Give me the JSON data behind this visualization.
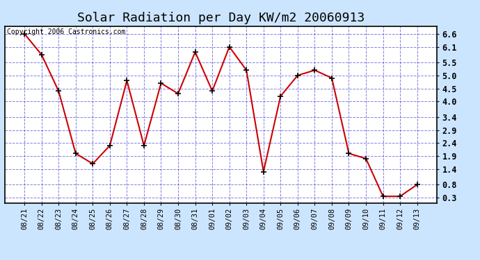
{
  "title": "Solar Radiation per Day KW/m2 20060913",
  "copyright": "Copyright 2006 Castronics.com",
  "dates": [
    "08/21",
    "08/22",
    "08/23",
    "08/24",
    "08/25",
    "08/26",
    "08/27",
    "08/28",
    "08/29",
    "08/30",
    "08/31",
    "09/01",
    "09/02",
    "09/03",
    "09/04",
    "09/05",
    "09/06",
    "09/07",
    "09/08",
    "09/09",
    "09/10",
    "09/11",
    "09/12",
    "09/13"
  ],
  "values": [
    6.6,
    5.8,
    4.4,
    2.0,
    1.6,
    2.3,
    4.8,
    2.3,
    4.7,
    4.3,
    5.9,
    4.4,
    6.1,
    5.2,
    1.3,
    4.2,
    5.0,
    5.2,
    4.9,
    2.0,
    1.8,
    0.35,
    0.35,
    0.8
  ],
  "ylim": [
    0.1,
    6.9
  ],
  "yticks": [
    0.3,
    0.8,
    1.4,
    1.9,
    2.4,
    2.9,
    3.4,
    4.0,
    4.5,
    5.0,
    5.5,
    6.1,
    6.6
  ],
  "line_color": "#cc0000",
  "marker": "+",
  "marker_color": "black",
  "bg_color": "#cce5ff",
  "plot_bg": "#ffffff",
  "grid_color": "#0000cc",
  "grid_alpha": 0.5,
  "title_fontsize": 13,
  "copyright_fontsize": 7,
  "tick_fontsize": 7.5,
  "ytick_fontsize": 8.5,
  "figwidth": 6.9,
  "figheight": 3.75,
  "dpi": 100
}
